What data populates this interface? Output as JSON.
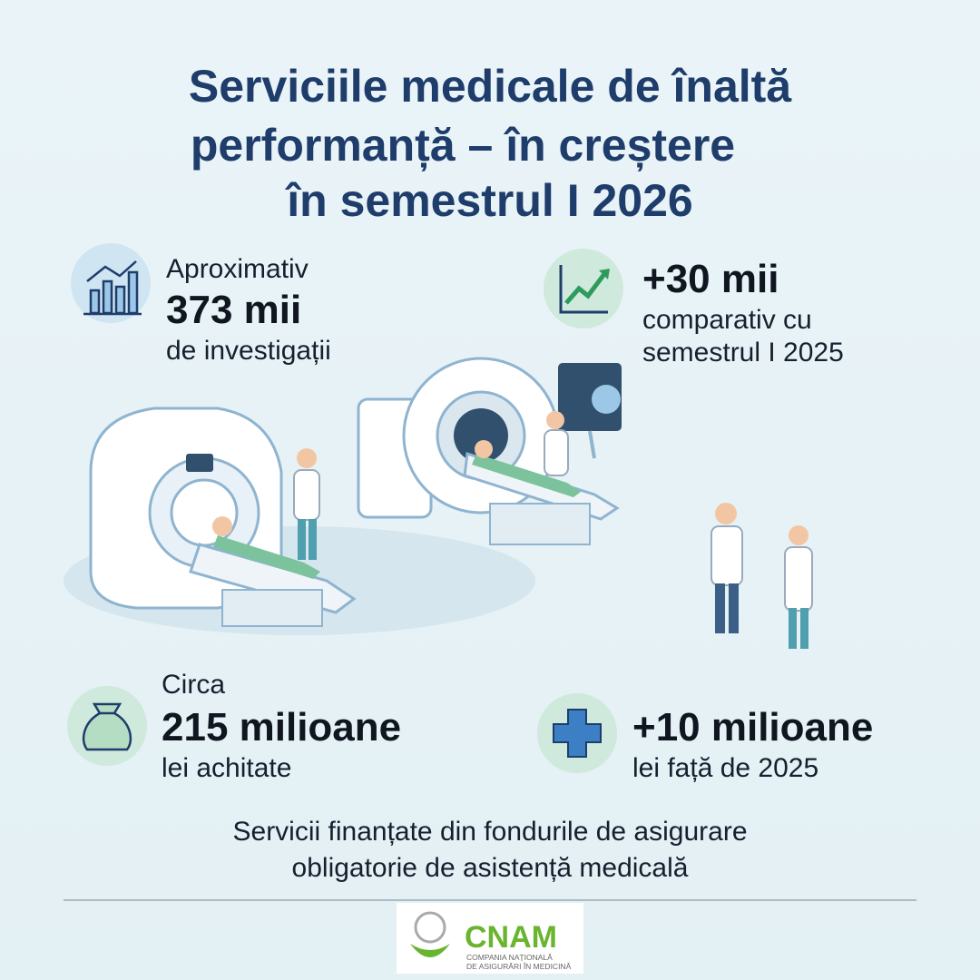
{
  "title": {
    "lines": [
      "Serviciile medicale de înaltă",
      "performanță – în creștere",
      "în semestrul I 2026"
    ]
  },
  "stats": [
    {
      "lead": "Aproximativ",
      "value": "373 mii",
      "note": [
        "de investigații"
      ]
    },
    {
      "value": "+30 mii",
      "note": [
        "comparativ cu",
        "semestrul I 2025"
      ]
    },
    {
      "lead": "Circa",
      "value": "215 milioane",
      "note": [
        "lei achitate"
      ]
    },
    {
      "value": "+10 milioane",
      "note": [
        "lei față de 2025"
      ]
    }
  ],
  "footer": {
    "lines": [
      "Servicii finanțate din fondurile de asigurare",
      "obligatorie de asistență medicală"
    ]
  },
  "logo": {
    "name": "CNAM",
    "subtitle": [
      "COMPANIA NAȚIONALĂ",
      "DE ASIGURĂRI ÎN MEDICINĂ"
    ]
  }
}
